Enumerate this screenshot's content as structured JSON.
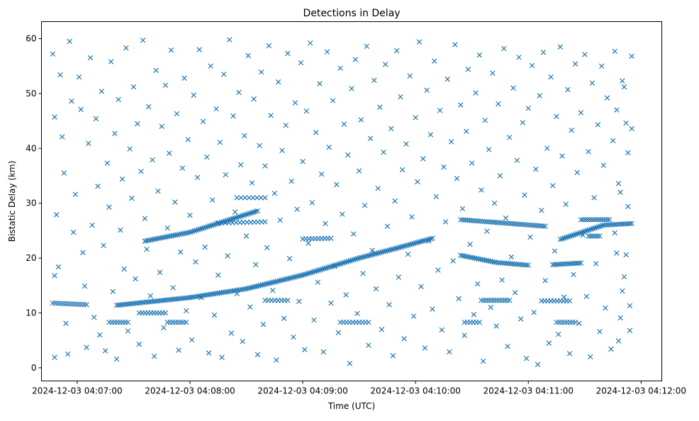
{
  "chart_data": {
    "type": "scatter",
    "title": "Detections in Delay",
    "xlabel": "Time (UTC)",
    "ylabel": "Bistatic Delay (km)",
    "x_units": "seconds after 2024-12-03 04:07:00",
    "xlim": [
      -19,
      311
    ],
    "ylim": [
      -2.4,
      63.1
    ],
    "grid": false,
    "marker": "x",
    "color": "#1f77b4",
    "x_ticks": [
      {
        "value": 0,
        "label": "2024-12-03 04:07:00"
      },
      {
        "value": 60,
        "label": "2024-12-03 04:08:00"
      },
      {
        "value": 120,
        "label": "2024-12-03 04:09:00"
      },
      {
        "value": 180,
        "label": "2024-12-03 04:10:00"
      },
      {
        "value": 240,
        "label": "2024-12-03 04:11:00"
      },
      {
        "value": 300,
        "label": "2024-12-03 04:12:00"
      }
    ],
    "y_ticks": [
      {
        "value": 0,
        "label": "0"
      },
      {
        "value": 10,
        "label": "10"
      },
      {
        "value": 20,
        "label": "20"
      },
      {
        "value": 30,
        "label": "30"
      },
      {
        "value": 40,
        "label": "40"
      },
      {
        "value": 50,
        "label": "50"
      },
      {
        "value": 60,
        "label": "60"
      }
    ],
    "tracks": [
      {
        "points": [
          [
            -13,
            11.8
          ],
          [
            5,
            11.5
          ]
        ],
        "count": 14
      },
      {
        "points": [
          [
            21,
            11.4
          ],
          [
            60,
            12.8
          ],
          [
            90,
            14.4
          ],
          [
            120,
            16.9
          ],
          [
            150,
            20.0
          ],
          [
            170,
            21.8
          ],
          [
            189,
            23.6
          ]
        ],
        "count": 170
      },
      {
        "points": [
          [
            36,
            23.1
          ],
          [
            60,
            24.7
          ],
          [
            96,
            28.6
          ]
        ],
        "count": 60
      },
      {
        "points": [
          [
            75,
            26.4
          ],
          [
            100,
            26.6
          ]
        ],
        "count": 14
      },
      {
        "points": [
          [
            204,
            27.0
          ],
          [
            249,
            25.8
          ]
        ],
        "count": 40
      },
      {
        "points": [
          [
            204,
            20.5
          ],
          [
            223,
            19.2
          ],
          [
            240,
            18.7
          ]
        ],
        "count": 35
      },
      {
        "points": [
          [
            253,
            18.8
          ],
          [
            268,
            19.1
          ]
        ],
        "count": 16
      },
      {
        "points": [
          [
            257,
            23.4
          ],
          [
            280,
            26.0
          ],
          [
            295,
            26.3
          ]
        ],
        "count": 38
      },
      {
        "points": [
          [
            268,
            27.0
          ],
          [
            283,
            27.0
          ]
        ],
        "count": 14
      },
      {
        "points": [
          [
            17,
            8.3
          ],
          [
            27,
            8.3
          ]
        ],
        "count": 8
      },
      {
        "points": [
          [
            48,
            8.3
          ],
          [
            58,
            8.3
          ]
        ],
        "count": 8
      },
      {
        "points": [
          [
            33,
            10.0
          ],
          [
            47,
            10.0
          ]
        ],
        "count": 10
      },
      {
        "points": [
          [
            206,
            8.3
          ],
          [
            214,
            8.3
          ]
        ],
        "count": 6
      },
      {
        "points": [
          [
            215,
            12.3
          ],
          [
            230,
            12.3
          ]
        ],
        "count": 12
      },
      {
        "points": [
          [
            247,
            12.2
          ],
          [
            262,
            12.2
          ]
        ],
        "count": 10
      },
      {
        "points": [
          [
            255,
            8.3
          ],
          [
            265,
            8.3
          ]
        ],
        "count": 8
      },
      {
        "points": [
          [
            120,
            23.5
          ],
          [
            135,
            23.6
          ]
        ],
        "count": 10
      },
      {
        "points": [
          [
            85,
            31.0
          ],
          [
            100,
            31.0
          ]
        ],
        "count": 8
      },
      {
        "points": [
          [
            100,
            12.3
          ],
          [
            112,
            12.3
          ]
        ],
        "count": 8
      },
      {
        "points": [
          [
            140,
            8.3
          ],
          [
            155,
            8.3
          ]
        ],
        "count": 10
      },
      {
        "points": [
          [
            272,
            24.0
          ],
          [
            278,
            24.0
          ]
        ],
        "count": 6
      }
    ],
    "scattered": [
      [
        -13,
        57.2
      ],
      [
        -12,
        45.7
      ],
      [
        -11,
        27.9
      ],
      [
        -10,
        18.4
      ],
      [
        -12,
        16.8
      ],
      [
        -9,
        53.4
      ],
      [
        -8,
        42.1
      ],
      [
        -7,
        35.5
      ],
      [
        -6,
        8.1
      ],
      [
        -5,
        2.5
      ],
      [
        -12,
        1.9
      ],
      [
        -4,
        59.5
      ],
      [
        -3,
        48.6
      ],
      [
        -2,
        24.7
      ],
      [
        -1,
        31.6
      ],
      [
        1,
        53.0
      ],
      [
        2,
        47.1
      ],
      [
        3,
        21.0
      ],
      [
        4,
        14.9
      ],
      [
        5,
        3.7
      ],
      [
        6,
        40.9
      ],
      [
        7,
        56.5
      ],
      [
        8,
        26.0
      ],
      [
        9,
        9.2
      ],
      [
        10,
        45.4
      ],
      [
        11,
        33.1
      ],
      [
        12,
        6.0
      ],
      [
        13,
        50.4
      ],
      [
        14,
        22.3
      ],
      [
        15,
        3.1
      ],
      [
        16,
        37.3
      ],
      [
        17,
        29.3
      ],
      [
        18,
        55.8
      ],
      [
        19,
        13.9
      ],
      [
        20,
        42.7
      ],
      [
        21,
        1.6
      ],
      [
        22,
        48.9
      ],
      [
        23,
        25.1
      ],
      [
        24,
        34.4
      ],
      [
        25,
        18.0
      ],
      [
        26,
        58.3
      ],
      [
        27,
        6.7
      ],
      [
        28,
        39.9
      ],
      [
        29,
        30.9
      ],
      [
        30,
        51.2
      ],
      [
        31,
        16.2
      ],
      [
        32,
        44.5
      ],
      [
        33,
        4.3
      ],
      [
        34,
        35.8
      ],
      [
        35,
        59.7
      ],
      [
        36,
        27.2
      ],
      [
        37,
        21.6
      ],
      [
        38,
        47.6
      ],
      [
        39,
        13.1
      ],
      [
        40,
        37.9
      ],
      [
        41,
        2.1
      ],
      [
        42,
        54.2
      ],
      [
        43,
        32.2
      ],
      [
        44,
        17.4
      ],
      [
        45,
        44.0
      ],
      [
        46,
        7.3
      ],
      [
        47,
        51.5
      ],
      [
        48,
        25.5
      ],
      [
        49,
        39.1
      ],
      [
        50,
        57.9
      ],
      [
        51,
        14.6
      ],
      [
        52,
        30.2
      ],
      [
        53,
        46.3
      ],
      [
        54,
        3.2
      ],
      [
        55,
        21.1
      ],
      [
        56,
        36.4
      ],
      [
        57,
        52.8
      ],
      [
        58,
        10.4
      ],
      [
        59,
        41.6
      ],
      [
        60,
        27.8
      ],
      [
        61,
        5.1
      ],
      [
        62,
        49.7
      ],
      [
        63,
        19.3
      ],
      [
        64,
        34.7
      ],
      [
        65,
        58.0
      ],
      [
        66,
        12.8
      ],
      [
        67,
        44.9
      ],
      [
        68,
        22.0
      ],
      [
        69,
        38.4
      ],
      [
        70,
        2.7
      ],
      [
        71,
        55.0
      ],
      [
        72,
        30.6
      ],
      [
        73,
        9.6
      ],
      [
        74,
        47.2
      ],
      [
        75,
        16.9
      ],
      [
        76,
        41.1
      ],
      [
        77,
        1.9
      ],
      [
        78,
        53.5
      ],
      [
        79,
        35.2
      ],
      [
        80,
        20.4
      ],
      [
        81,
        59.8
      ],
      [
        82,
        6.3
      ],
      [
        83,
        45.9
      ],
      [
        84,
        28.4
      ],
      [
        85,
        13.5
      ],
      [
        86,
        50.2
      ],
      [
        87,
        37.0
      ],
      [
        88,
        4.8
      ],
      [
        89,
        42.3
      ],
      [
        90,
        24.0
      ],
      [
        91,
        56.9
      ],
      [
        92,
        11.1
      ],
      [
        93,
        33.7
      ],
      [
        94,
        49.0
      ],
      [
        95,
        18.8
      ],
      [
        96,
        2.4
      ],
      [
        97,
        40.5
      ],
      [
        98,
        53.9
      ],
      [
        99,
        7.9
      ],
      [
        100,
        36.8
      ],
      [
        101,
        21.9
      ],
      [
        102,
        58.7
      ],
      [
        103,
        46.0
      ],
      [
        104,
        14.1
      ],
      [
        105,
        31.8
      ],
      [
        106,
        1.4
      ],
      [
        107,
        52.1
      ],
      [
        108,
        26.9
      ],
      [
        109,
        39.6
      ],
      [
        110,
        9.0
      ],
      [
        111,
        44.2
      ],
      [
        112,
        57.3
      ],
      [
        113,
        19.9
      ],
      [
        114,
        34.0
      ],
      [
        115,
        5.6
      ],
      [
        116,
        48.3
      ],
      [
        117,
        28.9
      ],
      [
        118,
        12.1
      ],
      [
        119,
        55.6
      ],
      [
        120,
        37.6
      ],
      [
        121,
        3.3
      ],
      [
        122,
        46.8
      ],
      [
        123,
        22.7
      ],
      [
        124,
        59.2
      ],
      [
        125,
        30.1
      ],
      [
        126,
        8.7
      ],
      [
        127,
        42.9
      ],
      [
        128,
        15.6
      ],
      [
        129,
        51.8
      ],
      [
        130,
        35.3
      ],
      [
        131,
        2.9
      ],
      [
        132,
        26.3
      ],
      [
        133,
        57.6
      ],
      [
        134,
        40.2
      ],
      [
        135,
        11.8
      ],
      [
        136,
        48.7
      ],
      [
        137,
        18.5
      ],
      [
        138,
        33.4
      ],
      [
        139,
        6.4
      ],
      [
        140,
        54.6
      ],
      [
        141,
        28.0
      ],
      [
        142,
        44.4
      ],
      [
        143,
        13.3
      ],
      [
        144,
        38.8
      ],
      [
        145,
        0.8
      ],
      [
        146,
        50.9
      ],
      [
        147,
        24.4
      ],
      [
        148,
        56.2
      ],
      [
        149,
        9.9
      ],
      [
        150,
        35.9
      ],
      [
        151,
        45.2
      ],
      [
        152,
        17.2
      ],
      [
        153,
        29.6
      ],
      [
        154,
        58.6
      ],
      [
        155,
        4.1
      ],
      [
        156,
        41.8
      ],
      [
        157,
        21.4
      ],
      [
        158,
        52.4
      ],
      [
        159,
        14.4
      ],
      [
        160,
        32.7
      ],
      [
        161,
        47.5
      ],
      [
        162,
        7.0
      ],
      [
        163,
        39.3
      ],
      [
        164,
        55.3
      ],
      [
        165,
        25.8
      ],
      [
        166,
        11.5
      ],
      [
        167,
        43.6
      ],
      [
        168,
        2.2
      ],
      [
        169,
        30.4
      ],
      [
        170,
        57.8
      ],
      [
        171,
        16.5
      ],
      [
        172,
        49.4
      ],
      [
        173,
        36.1
      ],
      [
        174,
        5.3
      ],
      [
        175,
        40.8
      ],
      [
        176,
        20.7
      ],
      [
        177,
        53.2
      ],
      [
        178,
        27.5
      ],
      [
        179,
        9.4
      ],
      [
        180,
        45.6
      ],
      [
        181,
        33.9
      ],
      [
        182,
        59.4
      ],
      [
        183,
        14.8
      ],
      [
        184,
        38.1
      ],
      [
        185,
        3.6
      ],
      [
        186,
        50.6
      ],
      [
        187,
        23.1
      ],
      [
        188,
        42.5
      ],
      [
        189,
        10.7
      ],
      [
        190,
        55.9
      ],
      [
        191,
        31.2
      ],
      [
        192,
        17.8
      ],
      [
        193,
        46.9
      ],
      [
        194,
        6.9
      ],
      [
        195,
        36.6
      ],
      [
        196,
        26.6
      ],
      [
        197,
        52.6
      ],
      [
        198,
        2.9
      ],
      [
        199,
        41.2
      ],
      [
        200,
        19.5
      ],
      [
        201,
        58.9
      ],
      [
        202,
        34.5
      ],
      [
        203,
        12.6
      ],
      [
        204,
        47.9
      ],
      [
        205,
        29.0
      ],
      [
        206,
        5.9
      ],
      [
        207,
        43.1
      ],
      [
        208,
        54.4
      ],
      [
        209,
        22.5
      ],
      [
        210,
        37.3
      ],
      [
        211,
        9.7
      ],
      [
        212,
        50.1
      ],
      [
        213,
        15.3
      ],
      [
        214,
        57.0
      ],
      [
        215,
        32.4
      ],
      [
        216,
        1.2
      ],
      [
        217,
        45.1
      ],
      [
        218,
        24.9
      ],
      [
        219,
        39.8
      ],
      [
        220,
        11.0
      ],
      [
        221,
        53.7
      ],
      [
        222,
        30.0
      ],
      [
        223,
        7.6
      ],
      [
        224,
        48.1
      ],
      [
        225,
        35.0
      ],
      [
        226,
        16.0
      ],
      [
        227,
        58.2
      ],
      [
        228,
        27.3
      ],
      [
        229,
        3.9
      ],
      [
        230,
        42.0
      ],
      [
        231,
        20.2
      ],
      [
        232,
        51.0
      ],
      [
        233,
        13.7
      ],
      [
        234,
        37.8
      ],
      [
        235,
        56.6
      ],
      [
        236,
        8.9
      ],
      [
        237,
        44.7
      ],
      [
        238,
        31.5
      ],
      [
        239,
        1.7
      ],
      [
        240,
        47.3
      ],
      [
        241,
        23.8
      ],
      [
        242,
        55.1
      ],
      [
        243,
        10.1
      ],
      [
        244,
        36.2
      ],
      [
        245,
        0.6
      ],
      [
        246,
        49.6
      ],
      [
        247,
        28.7
      ],
      [
        248,
        57.5
      ],
      [
        249,
        15.9
      ],
      [
        250,
        40.0
      ],
      [
        251,
        4.5
      ],
      [
        252,
        53.0
      ],
      [
        253,
        33.2
      ],
      [
        254,
        21.3
      ],
      [
        255,
        45.8
      ],
      [
        256,
        6.1
      ],
      [
        257,
        58.5
      ],
      [
        258,
        38.6
      ],
      [
        259,
        12.9
      ],
      [
        260,
        29.8
      ],
      [
        261,
        50.7
      ],
      [
        262,
        2.6
      ],
      [
        263,
        43.3
      ],
      [
        264,
        17.0
      ],
      [
        265,
        55.4
      ],
      [
        266,
        35.6
      ],
      [
        267,
        8.1
      ],
      [
        268,
        46.5
      ],
      [
        269,
        24.2
      ],
      [
        270,
        57.1
      ],
      [
        271,
        13.0
      ],
      [
        272,
        39.4
      ],
      [
        273,
        2.0
      ],
      [
        274,
        51.9
      ],
      [
        275,
        31.0
      ],
      [
        276,
        19.0
      ],
      [
        277,
        44.3
      ],
      [
        278,
        6.6
      ],
      [
        279,
        55.0
      ],
      [
        280,
        36.9
      ],
      [
        281,
        10.9
      ],
      [
        282,
        49.2
      ],
      [
        283,
        27.0
      ],
      [
        284,
        3.4
      ],
      [
        285,
        41.4
      ],
      [
        286,
        57.7
      ],
      [
        287,
        20.9
      ],
      [
        288,
        33.6
      ],
      [
        289,
        9.1
      ],
      [
        290,
        52.3
      ],
      [
        291,
        16.6
      ],
      [
        292,
        44.6
      ],
      [
        293,
        29.4
      ],
      [
        294,
        6.8
      ],
      [
        295,
        56.8
      ],
      [
        295,
        43.6
      ],
      [
        294,
        11.3
      ],
      [
        293,
        39.2
      ],
      [
        292,
        20.6
      ],
      [
        291,
        51.2
      ],
      [
        290,
        14.0
      ],
      [
        289,
        32.0
      ],
      [
        288,
        4.9
      ],
      [
        287,
        47.0
      ],
      [
        286,
        24.6
      ]
    ]
  }
}
